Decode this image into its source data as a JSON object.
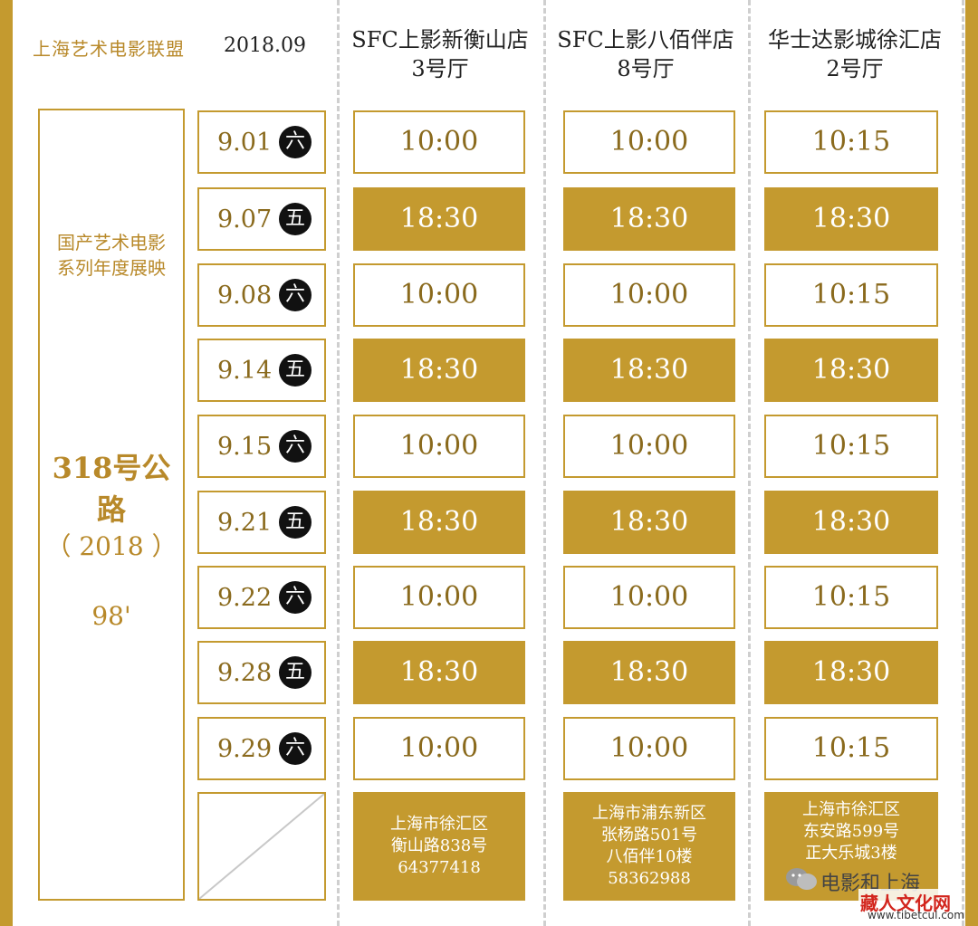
{
  "header": {
    "org": "上海艺术电影联盟",
    "date": "2018.09"
  },
  "venues": [
    {
      "name": "SFC上影新衡山店",
      "hall": "3号厅"
    },
    {
      "name": "SFC上影八佰伴店",
      "hall": "8号厅"
    },
    {
      "name": "华士达影城徐汇店",
      "hall": "2号厅"
    }
  ],
  "film": {
    "series": "国产艺术电影系列年度展映",
    "series_line1": "国产艺术电影",
    "series_line2": "系列年度展映",
    "title": "318号公路",
    "year": "（ 2018 ）",
    "length": "98'"
  },
  "schedule": [
    {
      "date": "9.01",
      "weekday": "六",
      "times": [
        "10:00",
        "10:00",
        "10:15"
      ],
      "style": "light"
    },
    {
      "date": "9.07",
      "weekday": "五",
      "times": [
        "18:30",
        "18:30",
        "18:30"
      ],
      "style": "dark"
    },
    {
      "date": "9.08",
      "weekday": "六",
      "times": [
        "10:00",
        "10:00",
        "10:15"
      ],
      "style": "light"
    },
    {
      "date": "9.14",
      "weekday": "五",
      "times": [
        "18:30",
        "18:30",
        "18:30"
      ],
      "style": "dark"
    },
    {
      "date": "9.15",
      "weekday": "六",
      "times": [
        "10:00",
        "10:00",
        "10:15"
      ],
      "style": "light"
    },
    {
      "date": "9.21",
      "weekday": "五",
      "times": [
        "18:30",
        "18:30",
        "18:30"
      ],
      "style": "dark"
    },
    {
      "date": "9.22",
      "weekday": "六",
      "times": [
        "10:00",
        "10:00",
        "10:15"
      ],
      "style": "light"
    },
    {
      "date": "9.28",
      "weekday": "五",
      "times": [
        "18:30",
        "18:30",
        "18:30"
      ],
      "style": "dark"
    },
    {
      "date": "9.29",
      "weekday": "六",
      "times": [
        "10:00",
        "10:00",
        "10:15"
      ],
      "style": "light"
    }
  ],
  "addresses": [
    [
      "上海市徐汇区",
      "衡山路838号",
      "64377418"
    ],
    [
      "上海市浦东新区",
      "张杨路501号",
      "八佰伴10楼",
      "58362988"
    ],
    [
      "上海市徐汇区",
      "东安路599号",
      "正大乐城3楼"
    ]
  ],
  "watermark": {
    "wechat_icon": "wechat-icon",
    "account": "电影和上海",
    "site_name": "藏人文化网",
    "site_url": "www.tibetcul.com"
  },
  "colors": {
    "gold": "#c49a2f",
    "gold_text": "#8a6a1d",
    "weekday_bg": "#111111",
    "watermark_red": "#d2251d"
  }
}
